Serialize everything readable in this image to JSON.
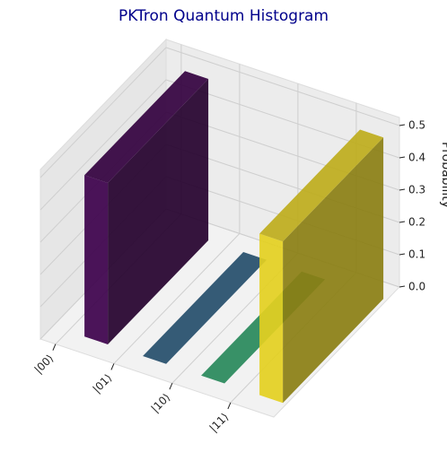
{
  "chart_data": {
    "type": "bar3d",
    "title": "PKTron Quantum Histogram",
    "zlabel": "Probability",
    "categories": [
      "|00⟩",
      "|01⟩",
      "|10⟩",
      "|11⟩"
    ],
    "values": [
      0.5,
      0,
      0,
      0.5
    ],
    "colors": [
      "#440154",
      "#31688e",
      "#35b779",
      "#fde725"
    ],
    "zlim": [
      0,
      0.5
    ],
    "zticks": [
      {
        "value": 0,
        "label": "0.0"
      },
      {
        "value": 0.1,
        "label": "0.1"
      },
      {
        "value": 0.2,
        "label": "0.2"
      },
      {
        "value": 0.3,
        "label": "0.3"
      },
      {
        "value": 0.4,
        "label": "0.4"
      },
      {
        "value": 0.5,
        "label": "0.5"
      }
    ],
    "grid": true
  }
}
